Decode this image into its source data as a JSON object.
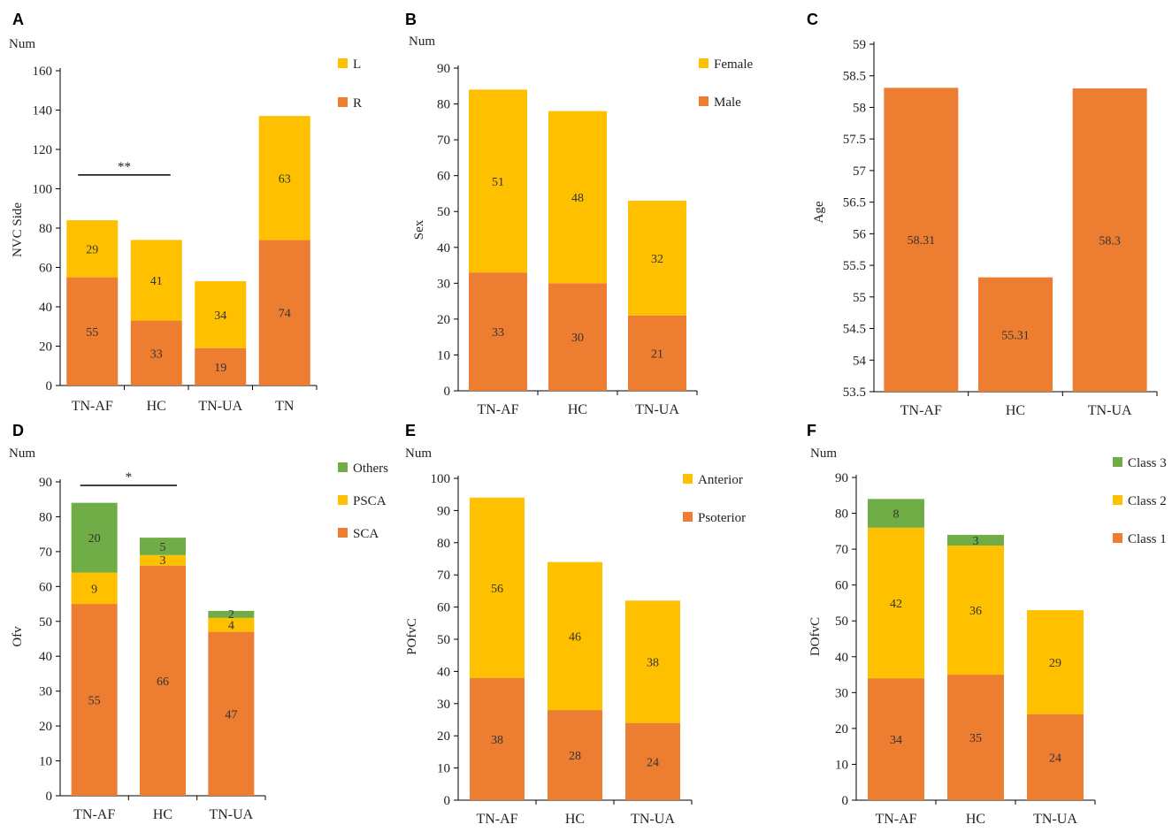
{
  "colors": {
    "orange": "#ED7D31",
    "yellow": "#FFC000",
    "green": "#70AD47",
    "axis": "#000000"
  },
  "chart_data": [
    {
      "id": "A",
      "panel_label": "A",
      "type": "bar",
      "stacked": true,
      "num_label": "Num",
      "ylabel": "NVC Side",
      "ylim": [
        0,
        160
      ],
      "yticks": [
        0,
        20,
        40,
        60,
        80,
        100,
        120,
        140,
        160
      ],
      "categories": [
        "TN-AF",
        "HC",
        "TN-UA",
        "TN"
      ],
      "series": [
        {
          "name": "R",
          "color": "#ED7D31",
          "values": [
            55,
            33,
            19,
            74
          ]
        },
        {
          "name": "L",
          "color": "#FFC000",
          "values": [
            29,
            41,
            34,
            63
          ]
        }
      ],
      "legend": [
        "L",
        "R"
      ],
      "annotations": [
        {
          "text": "**",
          "from": 0,
          "to": 1,
          "y": 107
        }
      ]
    },
    {
      "id": "B",
      "panel_label": "B",
      "type": "bar",
      "stacked": true,
      "num_label": "Num",
      "ylabel": "Sex",
      "ylim": [
        0,
        90
      ],
      "yticks": [
        0,
        10,
        20,
        30,
        40,
        50,
        60,
        70,
        80,
        90
      ],
      "categories": [
        "TN-AF",
        "HC",
        "TN-UA"
      ],
      "series": [
        {
          "name": "Male",
          "color": "#ED7D31",
          "values": [
            33,
            30,
            21
          ]
        },
        {
          "name": "Female",
          "color": "#FFC000",
          "values": [
            51,
            48,
            32
          ]
        }
      ],
      "legend": [
        "Female",
        "Male"
      ],
      "annotations": []
    },
    {
      "id": "C",
      "panel_label": "C",
      "type": "bar",
      "stacked": false,
      "num_label": "",
      "ylabel": "Age",
      "ylim": [
        53.5,
        59
      ],
      "yticks": [
        53.5,
        54,
        54.5,
        55,
        55.5,
        56,
        56.5,
        57,
        57.5,
        58,
        58.5,
        59
      ],
      "categories": [
        "TN-AF",
        "HC",
        "TN-UA"
      ],
      "series": [
        {
          "name": "Age",
          "color": "#ED7D31",
          "values": [
            58.31,
            55.31,
            58.3
          ]
        }
      ],
      "legend": [],
      "annotations": []
    },
    {
      "id": "D",
      "panel_label": "D",
      "type": "bar",
      "stacked": true,
      "num_label": "Num",
      "ylabel": "Ofv",
      "ylim": [
        0,
        90
      ],
      "yticks": [
        0,
        10,
        20,
        30,
        40,
        50,
        60,
        70,
        80,
        90
      ],
      "categories": [
        "TN-AF",
        "HC",
        "TN-UA"
      ],
      "series": [
        {
          "name": "SCA",
          "color": "#ED7D31",
          "values": [
            55,
            66,
            47
          ]
        },
        {
          "name": "PSCA",
          "color": "#FFC000",
          "values": [
            9,
            3,
            4
          ]
        },
        {
          "name": "Others",
          "color": "#70AD47",
          "values": [
            20,
            5,
            2
          ]
        }
      ],
      "legend": [
        "Others",
        "PSCA",
        "SCA"
      ],
      "annotations": [
        {
          "text": "*",
          "from": 0,
          "to": 1,
          "y": 89
        }
      ]
    },
    {
      "id": "E",
      "panel_label": "E",
      "type": "bar",
      "stacked": true,
      "num_label": "Num",
      "ylabel": "POfvC",
      "ylim": [
        0,
        100
      ],
      "yticks": [
        0,
        10,
        20,
        30,
        40,
        50,
        60,
        70,
        80,
        90,
        100
      ],
      "categories": [
        "TN-AF",
        "HC",
        "TN-UA"
      ],
      "series": [
        {
          "name": "Psoterior",
          "color": "#ED7D31",
          "values": [
            38,
            28,
            24
          ]
        },
        {
          "name": "Anterior",
          "color": "#FFC000",
          "values": [
            56,
            46,
            38
          ]
        }
      ],
      "legend": [
        "Anterior",
        "Psoterior"
      ],
      "annotations": []
    },
    {
      "id": "F",
      "panel_label": "F",
      "type": "bar",
      "stacked": true,
      "num_label": "Num",
      "ylabel": "DOfvC",
      "ylim": [
        0,
        90
      ],
      "yticks": [
        0,
        10,
        20,
        30,
        40,
        50,
        60,
        70,
        80,
        90
      ],
      "categories": [
        "TN-AF",
        "HC",
        "TN-UA"
      ],
      "series": [
        {
          "name": "Class 1",
          "color": "#ED7D31",
          "values": [
            34,
            35,
            24
          ]
        },
        {
          "name": "Class 2",
          "color": "#FFC000",
          "values": [
            42,
            36,
            29
          ]
        },
        {
          "name": "Class 3",
          "color": "#70AD47",
          "values": [
            8,
            3,
            0
          ]
        }
      ],
      "legend": [
        "Class 3",
        "Class 2",
        "Class 1"
      ],
      "annotations": []
    }
  ]
}
